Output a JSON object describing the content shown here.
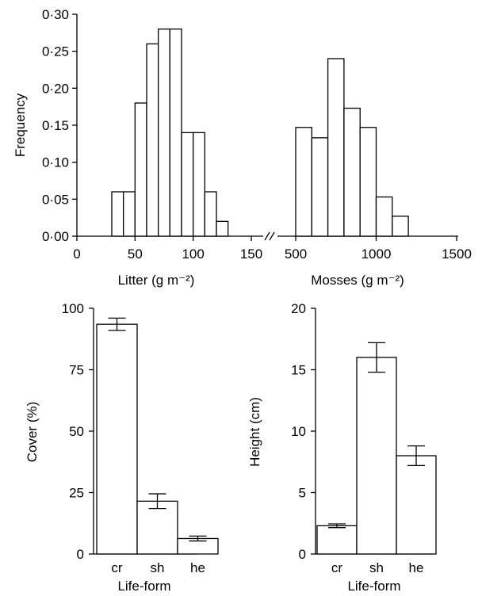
{
  "chart_data": [
    {
      "type": "bar",
      "subtype": "histogram",
      "panels": [
        {
          "xlabel": "Litter (g m⁻²)",
          "xlim": [
            0,
            150
          ],
          "xticks": [
            0,
            50,
            100,
            150
          ],
          "bin_width": 10,
          "bins": [
            {
              "x0": 30,
              "x1": 40,
              "value": 0.06
            },
            {
              "x0": 40,
              "x1": 50,
              "value": 0.06
            },
            {
              "x0": 50,
              "x1": 60,
              "value": 0.18
            },
            {
              "x0": 60,
              "x1": 70,
              "value": 0.26
            },
            {
              "x0": 70,
              "x1": 80,
              "value": 0.28
            },
            {
              "x0": 80,
              "x1": 90,
              "value": 0.28
            },
            {
              "x0": 90,
              "x1": 100,
              "value": 0.14
            },
            {
              "x0": 100,
              "x1": 110,
              "value": 0.14
            },
            {
              "x0": 110,
              "x1": 120,
              "value": 0.06
            },
            {
              "x0": 120,
              "x1": 130,
              "value": 0.02
            }
          ]
        },
        {
          "xlabel": "Mosses (g m⁻²)",
          "xlim": [
            500,
            1500
          ],
          "xticks": [
            500,
            1000,
            1500
          ],
          "bins": [
            {
              "x0": 500,
              "x1": 600,
              "value": 0.147
            },
            {
              "x0": 600,
              "x1": 700,
              "value": 0.133
            },
            {
              "x0": 700,
              "x1": 800,
              "value": 0.24
            },
            {
              "x0": 800,
              "x1": 900,
              "value": 0.173
            },
            {
              "x0": 900,
              "x1": 1000,
              "value": 0.147
            },
            {
              "x0": 1000,
              "x1": 1100,
              "value": 0.053
            },
            {
              "x0": 1100,
              "x1": 1200,
              "value": 0.027
            }
          ]
        }
      ],
      "ylabel": "Frequency",
      "ylim": [
        0,
        0.3
      ],
      "yticks": [
        "0·00",
        "0·05",
        "0·10",
        "0·15",
        "0·20",
        "0·25",
        "0·30"
      ],
      "axis_break": "//"
    },
    {
      "type": "bar",
      "categories": [
        "cr",
        "sh",
        "he"
      ],
      "values": [
        93.5,
        21.5,
        6.3
      ],
      "errors": [
        2.5,
        3.0,
        1.0
      ],
      "xlabel": "Life-form",
      "ylabel": "Cover (%)",
      "ylim": [
        0,
        100
      ],
      "yticks": [
        "0",
        "25",
        "50",
        "75",
        "100"
      ]
    },
    {
      "type": "bar",
      "categories": [
        "cr",
        "sh",
        "he"
      ],
      "values": [
        2.3,
        16.0,
        8.0
      ],
      "errors": [
        0.15,
        1.2,
        0.8
      ],
      "xlabel": "Life-form",
      "ylabel": "Height (cm)",
      "ylim": [
        0,
        20
      ],
      "yticks": [
        "0",
        "5",
        "10",
        "15",
        "20"
      ]
    }
  ]
}
